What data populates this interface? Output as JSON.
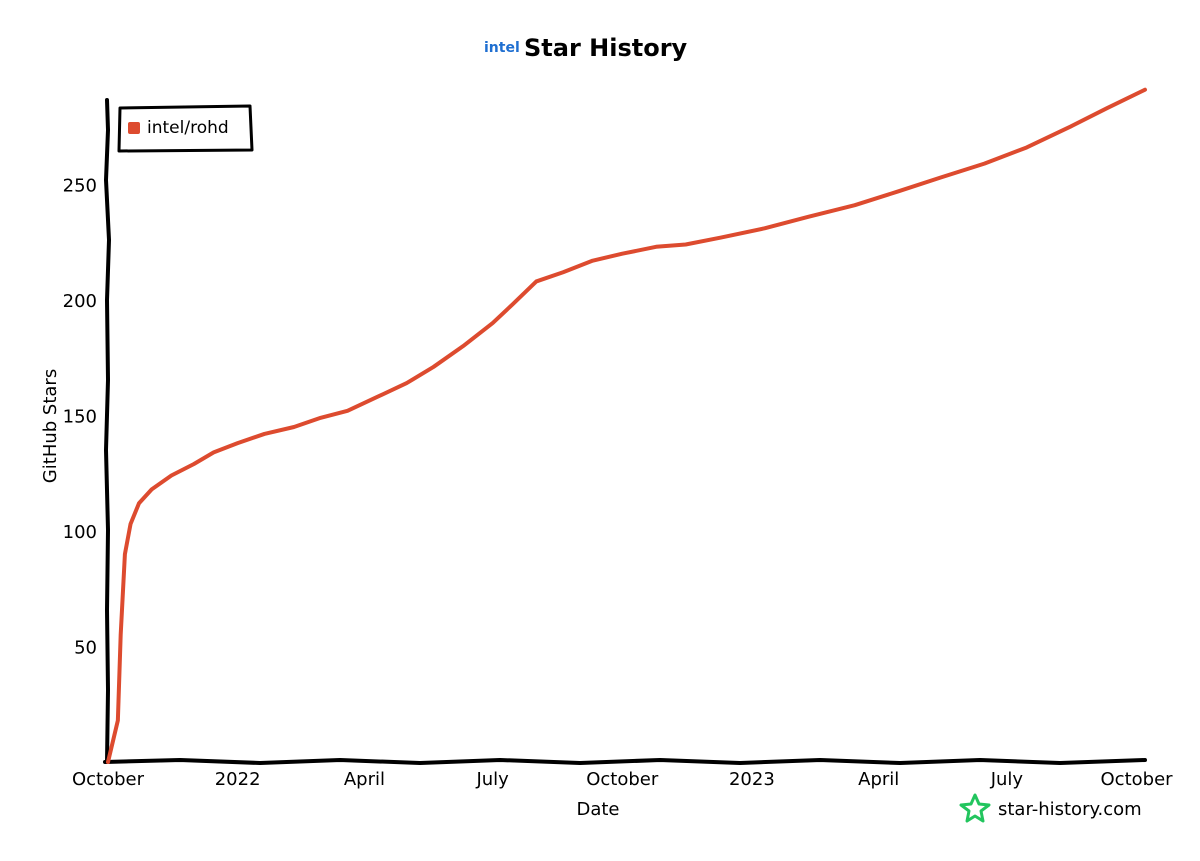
{
  "header": {
    "brand": "intel",
    "title": "Star History",
    "brand_color": "#1f6fd1"
  },
  "footer": {
    "watermark": "star-history.com",
    "watermark_icon": "star-icon",
    "watermark_color": "#22c55e"
  },
  "chart_data": {
    "type": "line",
    "title": "Star History",
    "xlabel": "Date",
    "ylabel": "GitHub Stars",
    "xlim": [
      "2021-10-01",
      "2023-10-07"
    ],
    "ylim": [
      0,
      290
    ],
    "grid": false,
    "legend_position": "top-left",
    "x_ticks": [
      {
        "label": "October",
        "date": "2021-10-01"
      },
      {
        "label": "2022",
        "date": "2022-01-01"
      },
      {
        "label": "April",
        "date": "2022-04-01"
      },
      {
        "label": "July",
        "date": "2022-07-01"
      },
      {
        "label": "October",
        "date": "2022-10-01"
      },
      {
        "label": "2023",
        "date": "2023-01-01"
      },
      {
        "label": "April",
        "date": "2023-04-01"
      },
      {
        "label": "July",
        "date": "2023-07-01"
      },
      {
        "label": "October",
        "date": "2023-10-01"
      }
    ],
    "y_ticks": [
      50,
      100,
      150,
      200,
      250
    ],
    "series": [
      {
        "name": "intel/rohd",
        "color": "#dd4b2f",
        "points": [
          {
            "date": "2021-10-01",
            "value": 0
          },
          {
            "date": "2021-10-08",
            "value": 18
          },
          {
            "date": "2021-10-10",
            "value": 55
          },
          {
            "date": "2021-10-13",
            "value": 90
          },
          {
            "date": "2021-10-17",
            "value": 103
          },
          {
            "date": "2021-10-23",
            "value": 112
          },
          {
            "date": "2021-11-01",
            "value": 118
          },
          {
            "date": "2021-11-15",
            "value": 124
          },
          {
            "date": "2021-12-01",
            "value": 129
          },
          {
            "date": "2021-12-15",
            "value": 134
          },
          {
            "date": "2022-01-01",
            "value": 138
          },
          {
            "date": "2022-01-20",
            "value": 142
          },
          {
            "date": "2022-02-10",
            "value": 145
          },
          {
            "date": "2022-03-01",
            "value": 149
          },
          {
            "date": "2022-03-20",
            "value": 152
          },
          {
            "date": "2022-04-10",
            "value": 158
          },
          {
            "date": "2022-05-01",
            "value": 164
          },
          {
            "date": "2022-05-20",
            "value": 171
          },
          {
            "date": "2022-06-10",
            "value": 180
          },
          {
            "date": "2022-07-01",
            "value": 190
          },
          {
            "date": "2022-07-15",
            "value": 198
          },
          {
            "date": "2022-08-01",
            "value": 208
          },
          {
            "date": "2022-08-20",
            "value": 212
          },
          {
            "date": "2022-09-10",
            "value": 217
          },
          {
            "date": "2022-10-01",
            "value": 220
          },
          {
            "date": "2022-10-25",
            "value": 223
          },
          {
            "date": "2022-11-15",
            "value": 224
          },
          {
            "date": "2022-12-10",
            "value": 227
          },
          {
            "date": "2023-01-10",
            "value": 231
          },
          {
            "date": "2023-02-10",
            "value": 236
          },
          {
            "date": "2023-03-15",
            "value": 241
          },
          {
            "date": "2023-04-15",
            "value": 247
          },
          {
            "date": "2023-05-15",
            "value": 253
          },
          {
            "date": "2023-06-15",
            "value": 259
          },
          {
            "date": "2023-07-15",
            "value": 266
          },
          {
            "date": "2023-08-15",
            "value": 275
          },
          {
            "date": "2023-09-10",
            "value": 283
          },
          {
            "date": "2023-10-07",
            "value": 291
          }
        ]
      }
    ]
  }
}
